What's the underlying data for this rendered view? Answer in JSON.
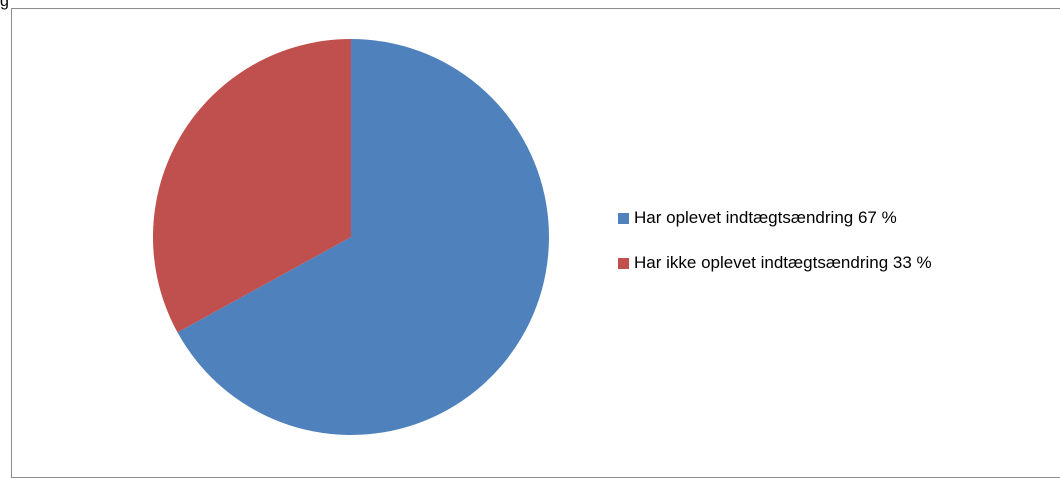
{
  "header": {
    "label": "g"
  },
  "chart_data": {
    "type": "pie",
    "title": "",
    "start_angle_deg": 0,
    "direction": "clockwise",
    "series": [
      {
        "name": "Har oplevet indtægtsændring 67 %",
        "value": 67,
        "color": "#4F81BD"
      },
      {
        "name": "Har ikke oplevet indtægtsændring 33 %",
        "value": 33,
        "color": "#C0504D"
      }
    ],
    "legend_position": "right"
  }
}
